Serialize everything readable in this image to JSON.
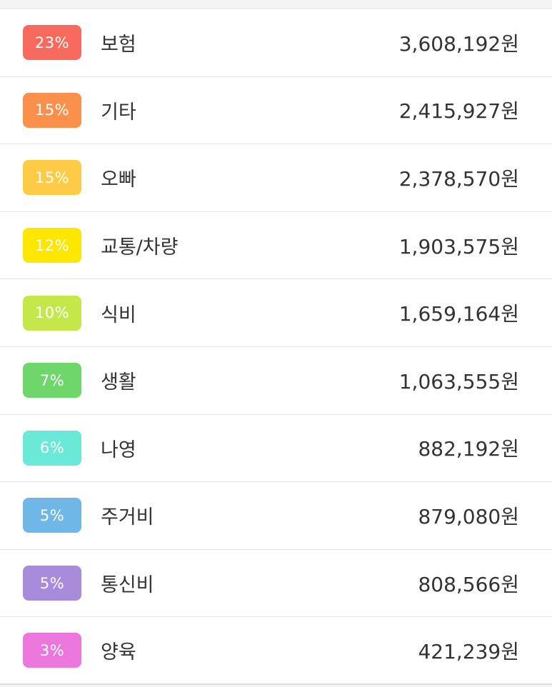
{
  "categories": [
    {
      "percent": "23%",
      "name": "보험",
      "amount": "3,608,192원",
      "color": "#f86a5e"
    },
    {
      "percent": "15%",
      "name": "기타",
      "amount": "2,415,927원",
      "color": "#fb8f4c"
    },
    {
      "percent": "15%",
      "name": "오빠",
      "amount": "2,378,570원",
      "color": "#fdcb45"
    },
    {
      "percent": "12%",
      "name": "교통/차량",
      "amount": "1,903,575원",
      "color": "#fde600"
    },
    {
      "percent": "10%",
      "name": "식비",
      "amount": "1,659,164원",
      "color": "#c4e84a"
    },
    {
      "percent": "7%",
      "name": "생활",
      "amount": "1,063,555원",
      "color": "#6fd66b"
    },
    {
      "percent": "6%",
      "name": "나영",
      "amount": "882,192원",
      "color": "#6ae8d8"
    },
    {
      "percent": "5%",
      "name": "주거비",
      "amount": "879,080원",
      "color": "#6fb7e6"
    },
    {
      "percent": "5%",
      "name": "통신비",
      "amount": "808,566원",
      "color": "#a98bdc"
    },
    {
      "percent": "3%",
      "name": "양육",
      "amount": "421,239원",
      "color": "#ec77dc"
    }
  ]
}
